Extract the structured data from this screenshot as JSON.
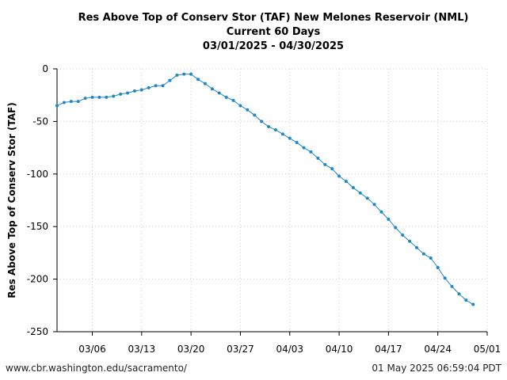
{
  "chart_data": {
    "type": "line",
    "title": "Res Above Top of Conserv Stor (TAF) New Melones Reservoir (NML)",
    "subtitle": "Current 60 Days",
    "date_range": "03/01/2025 - 04/30/2025",
    "xlabel": "",
    "ylabel": "Res Above Top of Conserv Stor (TAF)",
    "ylim": [
      -250,
      0
    ],
    "yticks": [
      0,
      -50,
      -100,
      -150,
      -200,
      -250
    ],
    "xlim": [
      "2025-03-01",
      "2025-05-01"
    ],
    "xticks": [
      {
        "date": "2025-03-06",
        "label": "03/06"
      },
      {
        "date": "2025-03-13",
        "label": "03/13"
      },
      {
        "date": "2025-03-20",
        "label": "03/20"
      },
      {
        "date": "2025-03-27",
        "label": "03/27"
      },
      {
        "date": "2025-04-03",
        "label": "04/03"
      },
      {
        "date": "2025-04-10",
        "label": "04/10"
      },
      {
        "date": "2025-04-17",
        "label": "04/17"
      },
      {
        "date": "2025-04-24",
        "label": "04/24"
      },
      {
        "date": "2025-05-01",
        "label": "05/01"
      }
    ],
    "grid": true,
    "series_color": "#1f88c6",
    "series": [
      {
        "x": [
          "2025-03-01",
          "2025-03-02",
          "2025-03-03",
          "2025-03-04",
          "2025-03-05",
          "2025-03-06",
          "2025-03-07",
          "2025-03-08",
          "2025-03-09",
          "2025-03-10",
          "2025-03-11",
          "2025-03-12",
          "2025-03-13",
          "2025-03-14",
          "2025-03-15",
          "2025-03-16",
          "2025-03-17",
          "2025-03-18",
          "2025-03-19",
          "2025-03-20",
          "2025-03-21",
          "2025-03-22",
          "2025-03-23",
          "2025-03-24",
          "2025-03-25",
          "2025-03-26",
          "2025-03-27",
          "2025-03-28",
          "2025-03-29",
          "2025-03-30",
          "2025-03-31",
          "2025-04-01",
          "2025-04-02",
          "2025-04-03",
          "2025-04-04",
          "2025-04-05",
          "2025-04-06",
          "2025-04-07",
          "2025-04-08",
          "2025-04-09",
          "2025-04-10",
          "2025-04-11",
          "2025-04-12",
          "2025-04-13",
          "2025-04-14",
          "2025-04-15",
          "2025-04-16",
          "2025-04-17",
          "2025-04-18",
          "2025-04-19",
          "2025-04-20",
          "2025-04-21",
          "2025-04-22",
          "2025-04-23",
          "2025-04-24",
          "2025-04-25",
          "2025-04-26",
          "2025-04-27",
          "2025-04-28",
          "2025-04-29"
        ],
        "values": [
          -35,
          -32,
          -31,
          -31,
          -28,
          -27,
          -27,
          -27,
          -26,
          -24,
          -23,
          -21,
          -20,
          -18,
          -16,
          -16,
          -11,
          -6,
          -5,
          -5,
          -10,
          -14,
          -19,
          -23,
          -27,
          -30,
          -35,
          -39,
          -44,
          -50,
          -55,
          -58,
          -62,
          -66,
          -70,
          -75,
          -79,
          -85,
          -91,
          -95,
          -102,
          -107,
          -113,
          -118,
          -123,
          -129,
          -136,
          -143,
          -151,
          -158,
          -164,
          -170,
          -176,
          -180,
          -189,
          -199,
          -207,
          -214,
          -220,
          -224
        ]
      }
    ]
  },
  "footer": {
    "source_url": "www.cbr.washington.edu/sacramento/",
    "generated": "01 May 2025 06:59:04 PDT"
  }
}
